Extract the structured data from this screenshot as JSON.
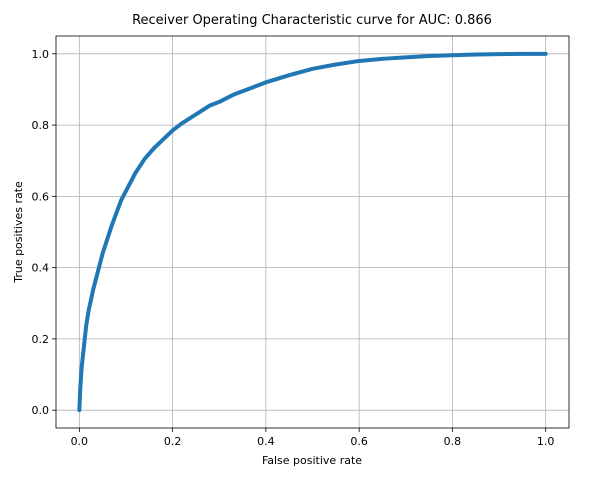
{
  "chart_data": {
    "type": "line",
    "title": "Receiver Operating Characteristic curve for AUC: 0.866",
    "xlabel": "False positive rate",
    "ylabel": "True positives rate",
    "xlim": [
      -0.05,
      1.05
    ],
    "ylim": [
      -0.05,
      1.05
    ],
    "grid": true,
    "x_ticks": [
      "0.0",
      "0.2",
      "0.4",
      "0.6",
      "0.8",
      "1.0"
    ],
    "y_ticks": [
      "0.0",
      "0.2",
      "0.4",
      "0.6",
      "0.8",
      "1.0"
    ],
    "series": [
      {
        "color": "#1f77b4",
        "x": [
          0.0,
          0.002,
          0.005,
          0.01,
          0.015,
          0.02,
          0.03,
          0.04,
          0.05,
          0.06,
          0.07,
          0.08,
          0.09,
          0.1,
          0.12,
          0.14,
          0.16,
          0.18,
          0.2,
          0.22,
          0.25,
          0.28,
          0.3,
          0.33,
          0.36,
          0.4,
          0.45,
          0.5,
          0.55,
          0.6,
          0.65,
          0.7,
          0.75,
          0.8,
          0.85,
          0.9,
          0.95,
          1.0
        ],
        "y": [
          0.0,
          0.06,
          0.12,
          0.18,
          0.24,
          0.28,
          0.34,
          0.39,
          0.44,
          0.48,
          0.52,
          0.555,
          0.59,
          0.615,
          0.665,
          0.705,
          0.735,
          0.76,
          0.785,
          0.805,
          0.83,
          0.855,
          0.865,
          0.885,
          0.9,
          0.92,
          0.94,
          0.958,
          0.97,
          0.98,
          0.986,
          0.99,
          0.994,
          0.996,
          0.998,
          0.999,
          1.0,
          1.0
        ]
      }
    ]
  }
}
